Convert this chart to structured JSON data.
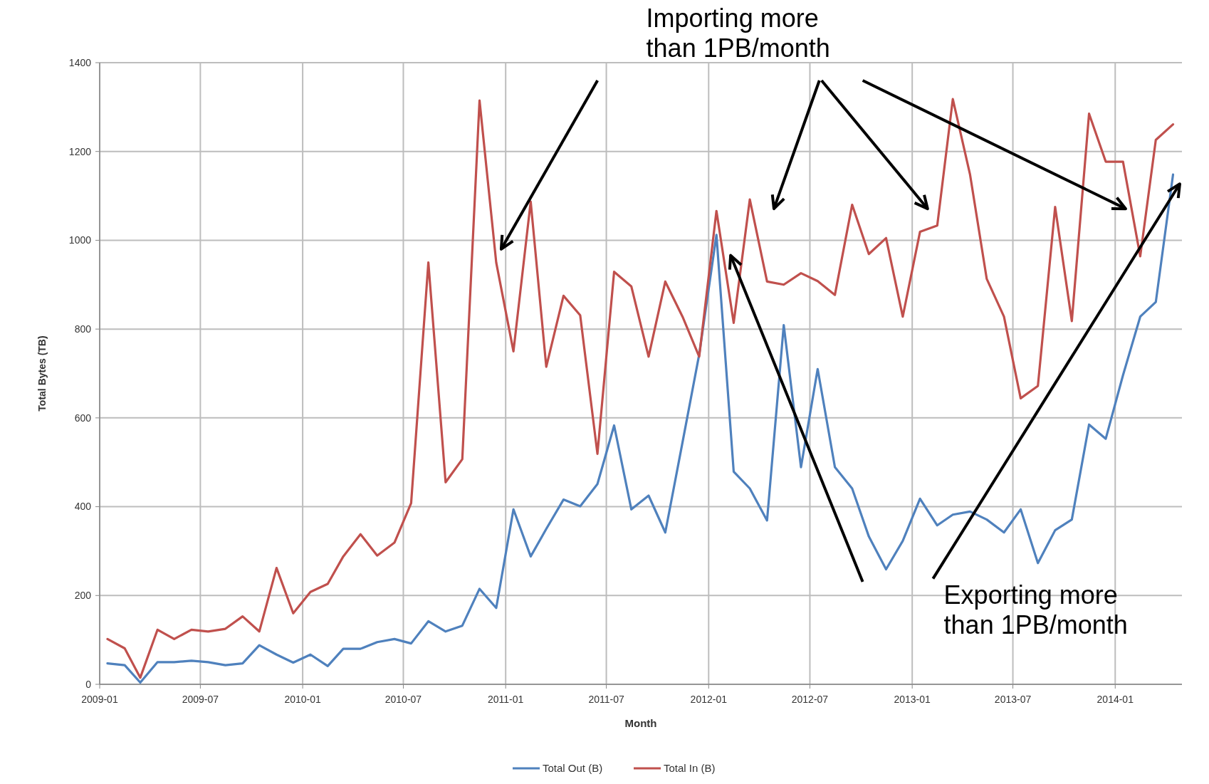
{
  "chart_data": {
    "type": "line",
    "xlabel": "Month",
    "ylabel": "Total Bytes (TB)",
    "x": [
      "2009-01-15",
      "2009-02-15",
      "2009-03-15",
      "2009-04-15",
      "2009-05-15",
      "2009-06-15",
      "2009-07-15",
      "2009-08-15",
      "2009-09-15",
      "2009-10-15",
      "2009-11-15",
      "2009-12-15",
      "2010-01-15",
      "2010-02-15",
      "2010-03-15",
      "2010-04-15",
      "2010-05-15",
      "2010-06-15",
      "2010-07-15",
      "2010-08-15",
      "2010-09-15",
      "2010-10-15",
      "2010-11-15",
      "2010-12-15",
      "2011-01-15",
      "2011-02-15",
      "2011-03-15",
      "2011-04-15",
      "2011-05-15",
      "2011-06-15",
      "2011-07-15",
      "2011-08-15",
      "2011-09-15",
      "2011-10-15",
      "2011-11-15",
      "2011-12-15",
      "2012-01-15",
      "2012-02-15",
      "2012-03-15",
      "2012-04-15",
      "2012-05-15",
      "2012-06-15",
      "2012-07-15",
      "2012-08-15",
      "2012-09-15",
      "2012-10-15",
      "2012-11-15",
      "2012-12-15",
      "2013-01-15",
      "2013-02-15",
      "2013-03-15",
      "2013-04-15",
      "2013-05-15",
      "2013-06-15",
      "2013-07-15",
      "2013-08-15",
      "2013-09-15",
      "2013-10-15",
      "2013-11-15",
      "2013-12-15",
      "2014-01-15",
      "2014-02-15",
      "2014-03-15",
      "2014-04-15"
    ],
    "series": [
      {
        "name": "Total Out (B)",
        "color": "#4f81bd",
        "values": [
          47,
          43,
          4,
          50,
          50,
          53,
          50,
          43,
          47,
          88,
          67,
          49,
          67,
          41,
          80,
          80,
          95,
          102,
          92,
          142,
          119,
          132,
          215,
          172,
          394,
          288,
          350,
          416,
          401,
          451,
          583,
          394,
          425,
          342,
          545,
          743,
          1012,
          479,
          441,
          369,
          809,
          489,
          710,
          489,
          441,
          333,
          259,
          323,
          418,
          358,
          382,
          389,
          371,
          342,
          394,
          273,
          347,
          371,
          585,
          553,
          696,
          828,
          861,
          1148
        ]
      },
      {
        "name": "Total In (B)",
        "color": "#c0504d",
        "values": [
          102,
          81,
          15,
          123,
          102,
          123,
          119,
          125,
          153,
          119,
          262,
          160,
          208,
          226,
          288,
          338,
          290,
          319,
          408,
          950,
          455,
          507,
          1315,
          950,
          750,
          1087,
          715,
          875,
          831,
          519,
          929,
          896,
          738,
          907,
          828,
          738,
          1066,
          814,
          1092,
          907,
          900,
          926,
          908,
          877,
          1080,
          969,
          1005,
          828,
          1019,
          1033,
          1318,
          1148,
          913,
          828,
          644,
          672,
          1075,
          818,
          1285,
          1177,
          1177,
          964,
          1226,
          1261
        ]
      }
    ],
    "xlim": [
      "2009-01",
      "2014-05"
    ],
    "xticks": [
      "2009-01",
      "2009-07",
      "2010-01",
      "2010-07",
      "2011-01",
      "2011-07",
      "2012-01",
      "2012-07",
      "2013-01",
      "2013-07",
      "2014-01"
    ],
    "ylim": [
      0,
      1400
    ],
    "yticks": [
      0,
      200,
      400,
      600,
      800,
      1000,
      1200,
      1400
    ],
    "grid": true,
    "legend": "bottom",
    "marker": "none",
    "line_style": "solid",
    "annotations": [
      "Importing more than 1PB/month",
      "Exporting more than 1PB/month"
    ]
  }
}
